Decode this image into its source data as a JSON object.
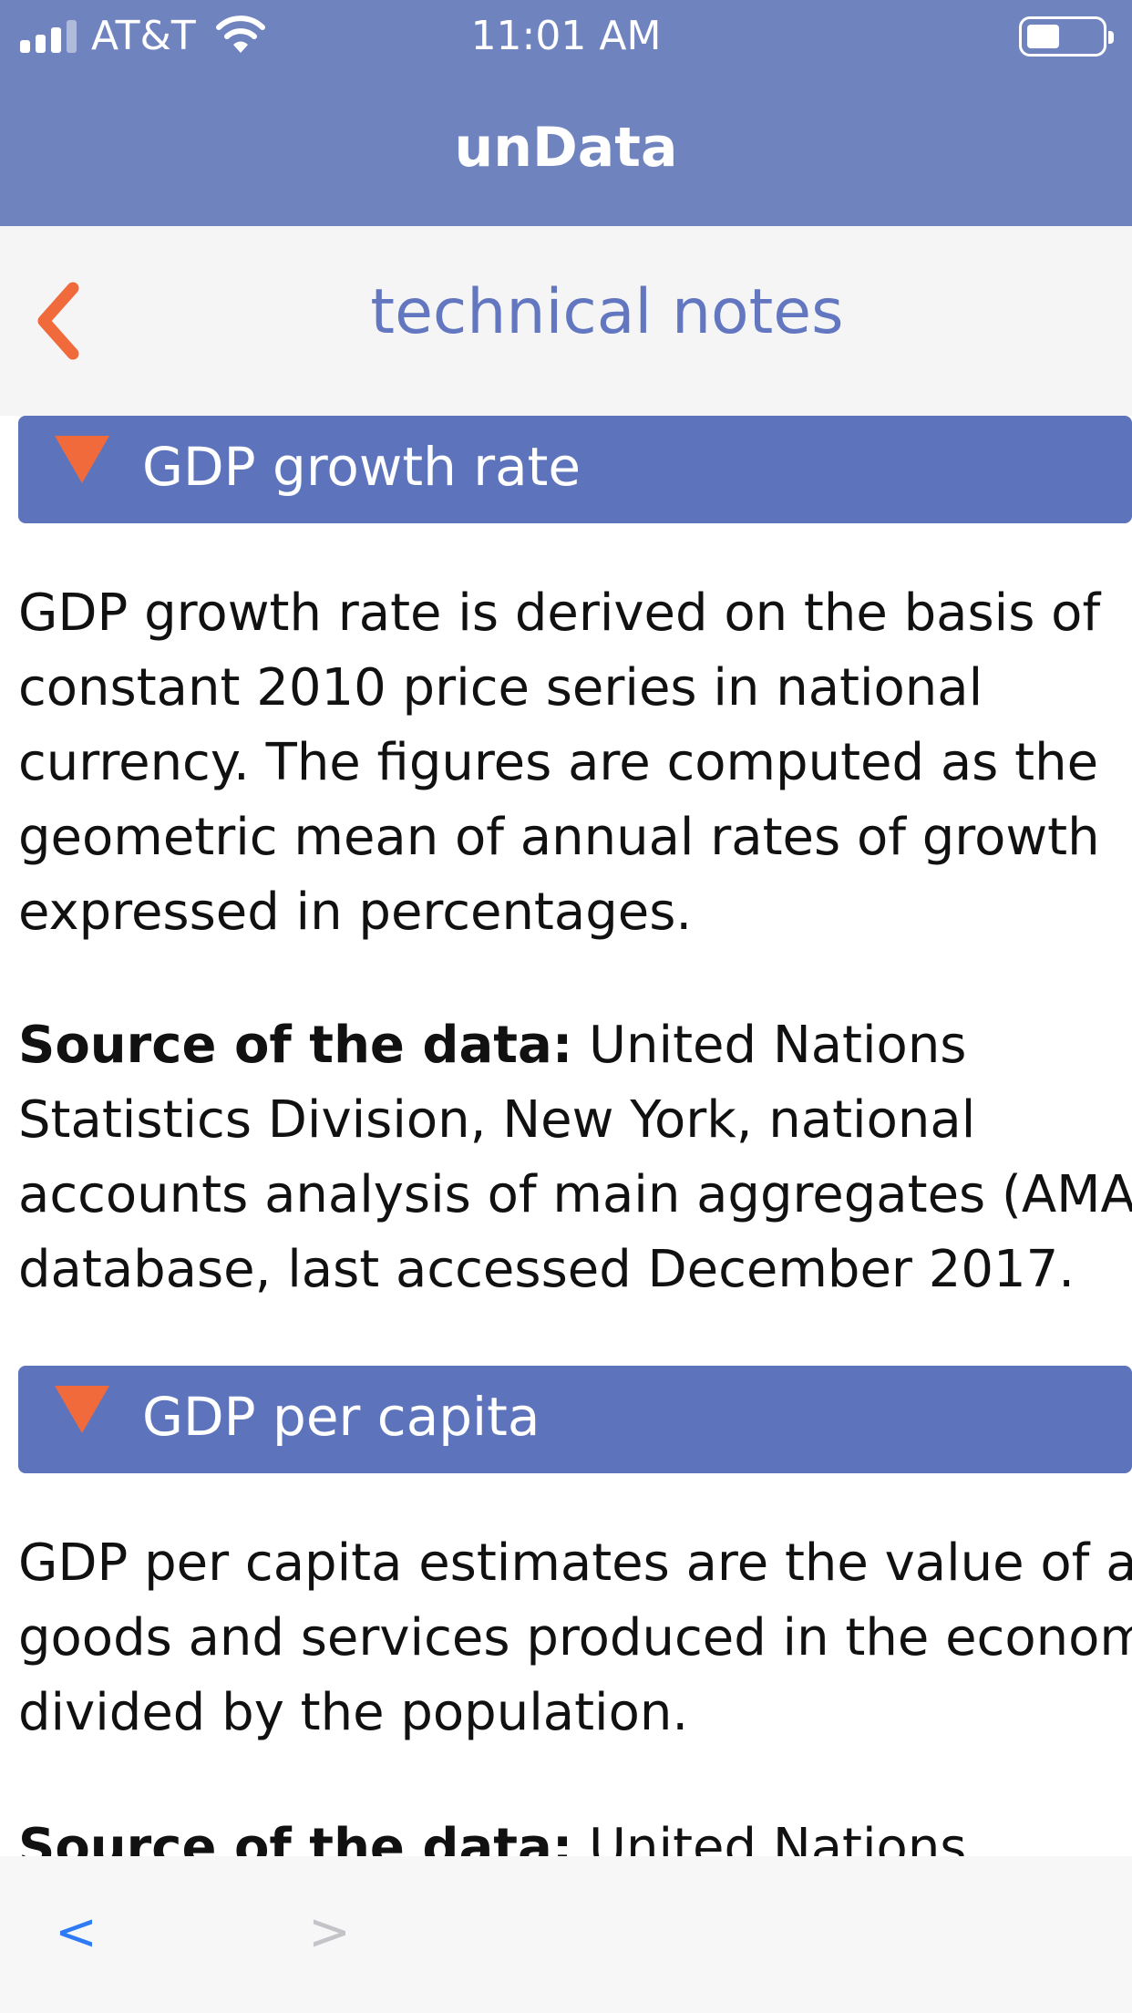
{
  "status_bar": {
    "carrier": "AT&T",
    "time": "11:01 AM",
    "battery_level": 0.45,
    "signal_bars": 4,
    "signal_bars_filled": 3
  },
  "app_bar": {
    "title": "unData"
  },
  "nav": {
    "title": "technical notes",
    "back_icon": "chevron-left-icon",
    "accent_color": "#f06a3b"
  },
  "sections": [
    {
      "header": "GDP growth rate",
      "icon": "triangle-down-icon",
      "paragraphs": [
        {
          "lines": [
            "GDP growth rate is derived on the basis of",
            "constant 2010 price series in national",
            "currency. The figures are computed as the",
            "geometric mean of annual rates of growth",
            "expressed in percentages."
          ]
        },
        {
          "bold_lead": "Source of the data:",
          "lines": [
            " United Nations",
            "Statistics Division, New York, national",
            "accounts analysis of main aggregates (AMA)",
            "database, last accessed December 2017."
          ]
        }
      ]
    },
    {
      "header": "GDP per capita",
      "icon": "triangle-down-icon",
      "paragraphs": [
        {
          "lines": [
            "GDP per capita estimates are the value of all",
            "goods and services produced in the economy",
            "divided by the population."
          ]
        },
        {
          "bold_lead": "Source of the data:",
          "lines": [
            " United Nations"
          ]
        }
      ]
    }
  ],
  "toolbar": {
    "back_label": "<",
    "forward_label": ">"
  },
  "colors": {
    "app_bar": "#6f83bf",
    "section_header": "#5d74bd",
    "nav_title": "#6376c0",
    "accent": "#f06a3b",
    "toolbar_active": "#2f7bf5",
    "toolbar_disabled": "#c3c3c8"
  }
}
